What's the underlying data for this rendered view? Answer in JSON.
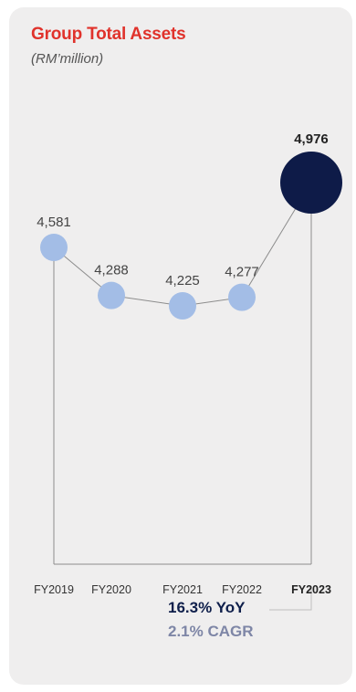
{
  "header": {
    "title": "Group Total Assets",
    "subtitle": "(RM’million)"
  },
  "chart_data": {
    "type": "line",
    "title": "Group Total Assets",
    "ylabel": "(RM’million)",
    "categories": [
      "FY2019",
      "FY2020",
      "FY2021",
      "FY2022",
      "FY2023"
    ],
    "values": [
      4581,
      4288,
      4225,
      4277,
      4976
    ],
    "data_labels": [
      "4,581",
      "4,288",
      "4,225",
      "4,277",
      "4,976"
    ],
    "highlight_index": 4,
    "colors": {
      "point": "#a3bde6",
      "highlight": "#0e1b48",
      "line": "#8c8c8c",
      "label": "#444444"
    }
  },
  "growth": {
    "yoy": "16.3% YoY",
    "cagr": "2.1% CAGR"
  }
}
